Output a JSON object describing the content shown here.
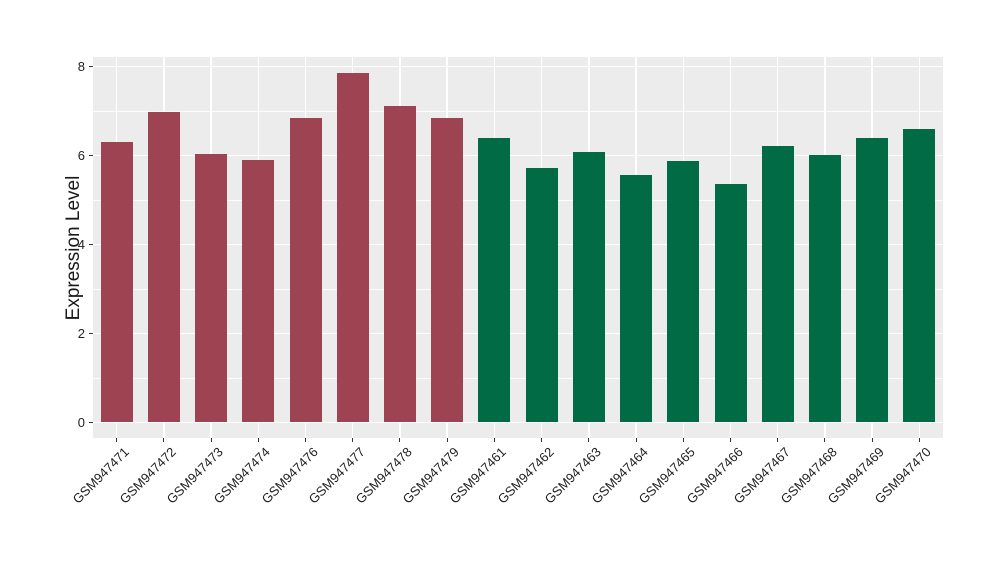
{
  "chart_data": {
    "type": "bar",
    "title": "",
    "ylabel": "Expression Level",
    "xlabel": "",
    "ylim": [
      0,
      8.2
    ],
    "yticks": [
      0,
      2,
      4,
      6,
      8
    ],
    "yminorticks": [
      1,
      3,
      5,
      7
    ],
    "legend": "none",
    "grid": "white major+minor horizontal lines, white major vertical lines at each bar, on gray panel",
    "panel_background": "#ECECEC",
    "gridline_color": "#FFFFFF",
    "axis_text_color": "#1F1F1F",
    "categories": [
      "GSM947471",
      "GSM947472",
      "GSM947473",
      "GSM947474",
      "GSM947476",
      "GSM947477",
      "GSM947478",
      "GSM947479",
      "GSM947461",
      "GSM947462",
      "GSM947463",
      "GSM947464",
      "GSM947465",
      "GSM947466",
      "GSM947467",
      "GSM947468",
      "GSM947469",
      "GSM947470"
    ],
    "series": [
      {
        "name": "group-red",
        "color": "#9E4352",
        "categories": [
          "GSM947471",
          "GSM947472",
          "GSM947473",
          "GSM947474",
          "GSM947476",
          "GSM947477",
          "GSM947478",
          "GSM947479"
        ],
        "values": [
          6.3,
          6.98,
          6.04,
          5.91,
          6.85,
          7.85,
          7.12,
          6.84
        ]
      },
      {
        "name": "group-green",
        "color": "#006B45",
        "categories": [
          "GSM947461",
          "GSM947462",
          "GSM947463",
          "GSM947464",
          "GSM947465",
          "GSM947466",
          "GSM947467",
          "GSM947468",
          "GSM947469",
          "GSM947470"
        ],
        "values": [
          6.4,
          5.73,
          6.08,
          5.57,
          5.87,
          5.36,
          6.22,
          6.02,
          6.4,
          6.6
        ]
      }
    ]
  }
}
